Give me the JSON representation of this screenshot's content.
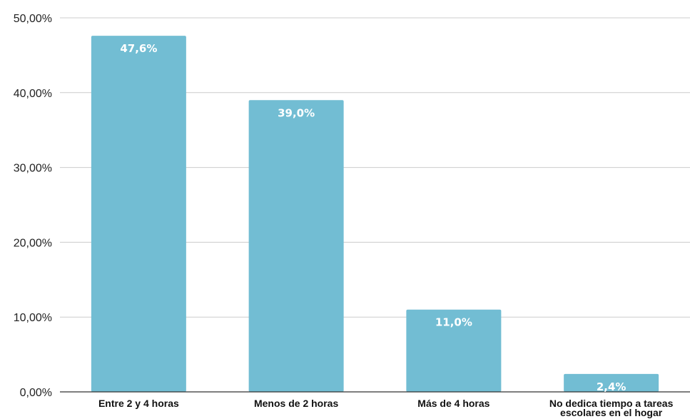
{
  "chart_data": {
    "type": "bar",
    "categories": [
      [
        "Entre 2 y 4 horas"
      ],
      [
        "Menos de 2 horas"
      ],
      [
        "Más de 4 horas"
      ],
      [
        "No dedica tiempo a tareas",
        "escolares en el hogar"
      ]
    ],
    "values": [
      47.6,
      39.0,
      11.0,
      2.4
    ],
    "data_labels": [
      "47,6%",
      "39,0%",
      "11,0%",
      "2,4%"
    ],
    "yticks": [
      "0,00%",
      "10,00%",
      "20,00%",
      "30,00%",
      "40,00%",
      "50,00%"
    ],
    "ylim": [
      0,
      50
    ],
    "grid": true,
    "legend": "none",
    "title": "",
    "xlabel": "",
    "ylabel": "",
    "colors": {
      "bar": "#72BDD3",
      "grid": "#CCCCCC",
      "axis": "#333333"
    }
  }
}
